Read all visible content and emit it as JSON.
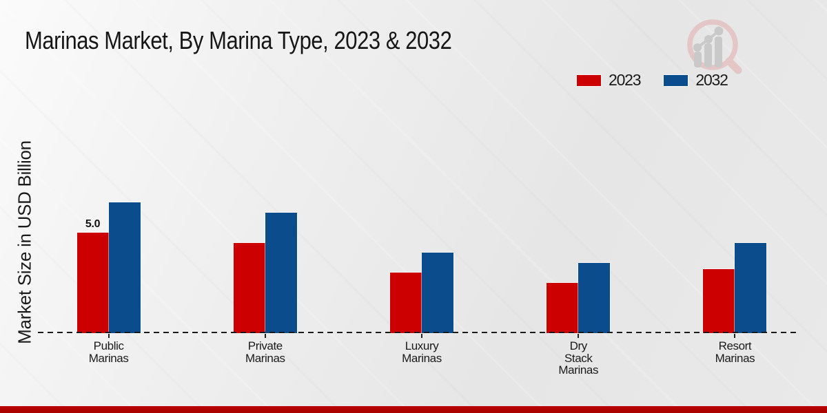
{
  "chart_data": {
    "type": "bar",
    "title": "Marinas Market, By Marina Type, 2023 & 2032",
    "ylabel": "Market Size in USD Billion",
    "xlabel": "",
    "categories": [
      "Public Marinas",
      "Private Marinas",
      "Luxury Marinas",
      "Dry Stack Marinas",
      "Resort Marinas"
    ],
    "category_lines": [
      [
        "Public",
        "Marinas"
      ],
      [
        "Private",
        "Marinas"
      ],
      [
        "Luxury",
        "Marinas"
      ],
      [
        "Dry",
        "Stack",
        "Marinas"
      ],
      [
        "Resort",
        "Marinas"
      ]
    ],
    "series": [
      {
        "name": "2023",
        "color": "#cc0000",
        "values": [
          5.0,
          4.5,
          3.0,
          2.5,
          3.2
        ]
      },
      {
        "name": "2032",
        "color": "#0b4d8c",
        "values": [
          6.5,
          6.0,
          4.0,
          3.5,
          4.5
        ]
      }
    ],
    "data_labels": [
      {
        "series": 0,
        "index": 0,
        "text": "5.0"
      }
    ],
    "ylim": [
      0,
      7
    ],
    "grid": false,
    "legend_position": "top-right",
    "baseline_style": "dashed"
  },
  "colors": {
    "series_2023": "#cc0000",
    "series_2032": "#0b4d8c",
    "bottom_band": "#b00202",
    "text": "#1a1a1a"
  },
  "branding": {
    "logo": "magnifier-bar-chart-watermark"
  }
}
